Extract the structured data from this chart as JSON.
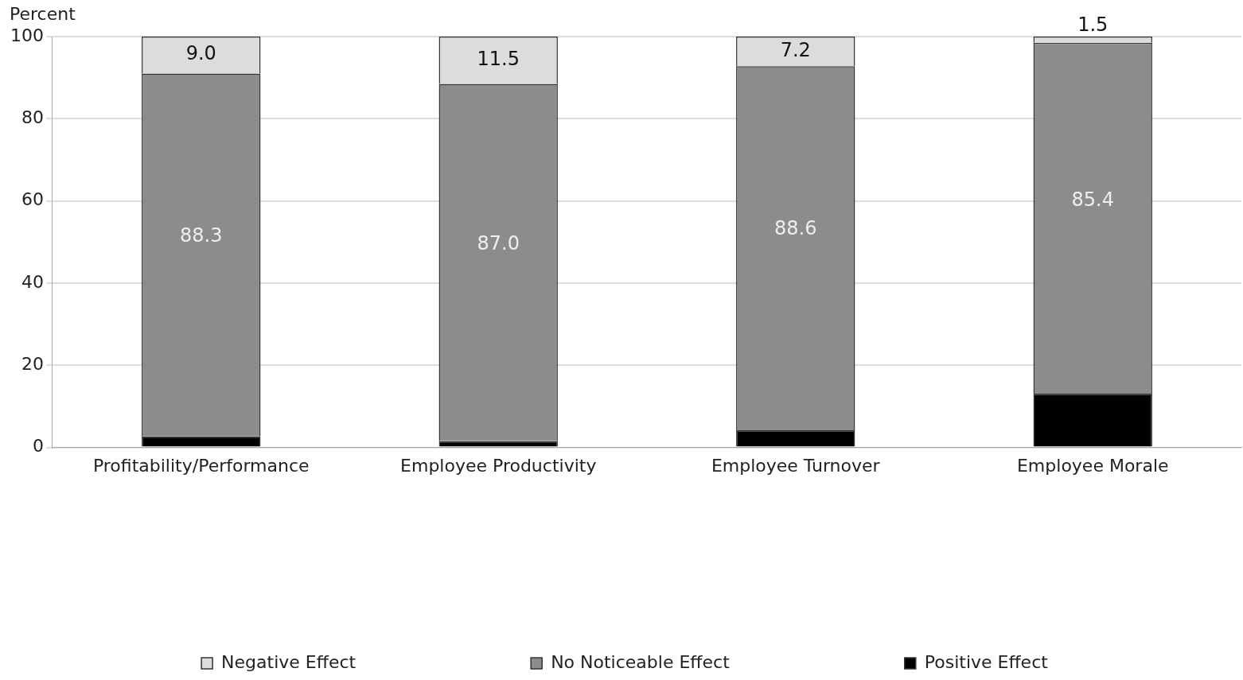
{
  "chart_data": {
    "type": "bar",
    "stacked": true,
    "ylabel": "Percent",
    "categories": [
      "Profitability/Performance",
      "Employee Productivity",
      "Employee Turnover",
      "Employee Morale"
    ],
    "series": [
      {
        "name": "Positive Effect",
        "color": "#000000",
        "values": [
          2.7,
          1.5,
          4.2,
          13.1
        ],
        "value_labels": [
          null,
          null,
          null,
          null
        ]
      },
      {
        "name": "No Noticeable Effect",
        "color": "#8c8c8c",
        "values": [
          88.3,
          87.0,
          88.6,
          85.4
        ],
        "value_labels": [
          "88.3",
          "87.0",
          "88.6",
          "85.4"
        ]
      },
      {
        "name": "Negative Effect",
        "color": "#dcdcdc",
        "values": [
          9.0,
          11.5,
          7.2,
          1.5
        ],
        "value_labels": [
          "9.0",
          "11.5",
          "7.2",
          "1.5"
        ]
      }
    ],
    "ylim": [
      0,
      100
    ],
    "yticks": [
      0,
      20,
      40,
      60,
      80,
      100
    ],
    "grid": "y",
    "legend": "bottom"
  }
}
